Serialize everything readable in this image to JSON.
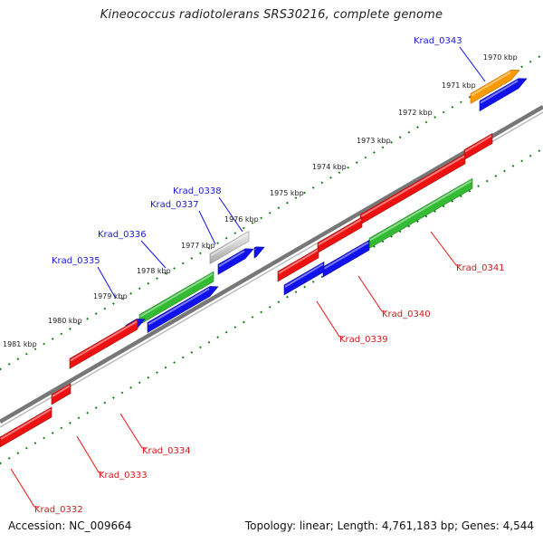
{
  "title": "Kineococcus radiotolerans SRS30216, complete genome",
  "footer": {
    "accession": "Accession: NC_009664",
    "summary": "Topology: linear; Length: 4,761,183 bp; Genes: 4,544"
  },
  "colors": {
    "red": "#ee1111",
    "blue": "#1111ee",
    "green": "#33bb33",
    "orange": "#ff9900",
    "grey": "#c8c8c8",
    "backbone": "#777777",
    "ticks": "#117711"
  },
  "kbp_ticks": [
    "1970 kbp",
    "1971 kbp",
    "1972 kbp",
    "1973 kbp",
    "1974 kbp",
    "1975 kbp",
    "1976 kbp",
    "1977 kbp",
    "1978 kbp",
    "1979 kbp",
    "1980 kbp",
    "1981 kbp"
  ],
  "forward_labels": [
    "Krad_0343",
    "Krad_0338",
    "Krad_0337",
    "Krad_0336",
    "Krad_0335"
  ],
  "reverse_labels": [
    "Krad_0341",
    "Krad_0340",
    "Krad_0339",
    "Krad_0334",
    "Krad_0333",
    "Krad_0332"
  ]
}
